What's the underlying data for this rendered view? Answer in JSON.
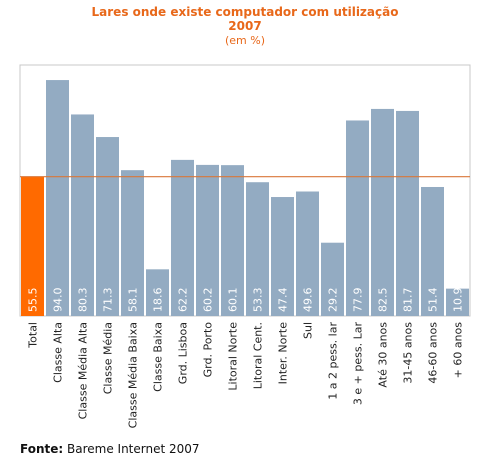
{
  "chart_data": {
    "type": "bar",
    "title": "Lares onde existe computador com utilização",
    "title_year": "2007",
    "subtitle": "(em %)",
    "categories": [
      "Total",
      "Classe Alta",
      "Classe Média Alta",
      "Classe Média",
      "Classe Média Baixa",
      "Classe Baixa",
      "Grd. Lisboa",
      "Grd. Porto",
      "Litoral Norte",
      "Litoral Cent.",
      "Inter. Norte",
      "Sul",
      "1 a 2 pess. lar",
      "3 e + pess. Lar",
      "Até 30 anos",
      "31-45 anos",
      "46-60 anos",
      "+ 60 anos"
    ],
    "values": [
      55.5,
      94.0,
      80.3,
      71.3,
      58.1,
      18.6,
      62.2,
      60.2,
      60.1,
      53.3,
      47.4,
      49.6,
      29.2,
      77.9,
      82.5,
      81.7,
      51.4,
      10.9
    ],
    "value_labels": [
      "55.5",
      "94.0",
      "80.3",
      "71.3",
      "58.1",
      "18.6",
      "62.2",
      "60.2",
      "60.1",
      "53.3",
      "47.4",
      "49.6",
      "29.2",
      "77.9",
      "82.5",
      "81.7",
      "51.4",
      "10.9"
    ],
    "reference_line": 55.5,
    "ylim": [
      0,
      100
    ],
    "xlabel": "",
    "ylabel": "",
    "grid": false,
    "colors": {
      "highlight_bar": "#ff6a00",
      "bar": "#93abc2",
      "reference_line": "#d9773a",
      "frame": "#c8c8c8",
      "value_label": "#ffffff",
      "title": "#e8681a"
    }
  },
  "source": {
    "label": "Fonte:",
    "text": "Bareme Internet 2007"
  }
}
